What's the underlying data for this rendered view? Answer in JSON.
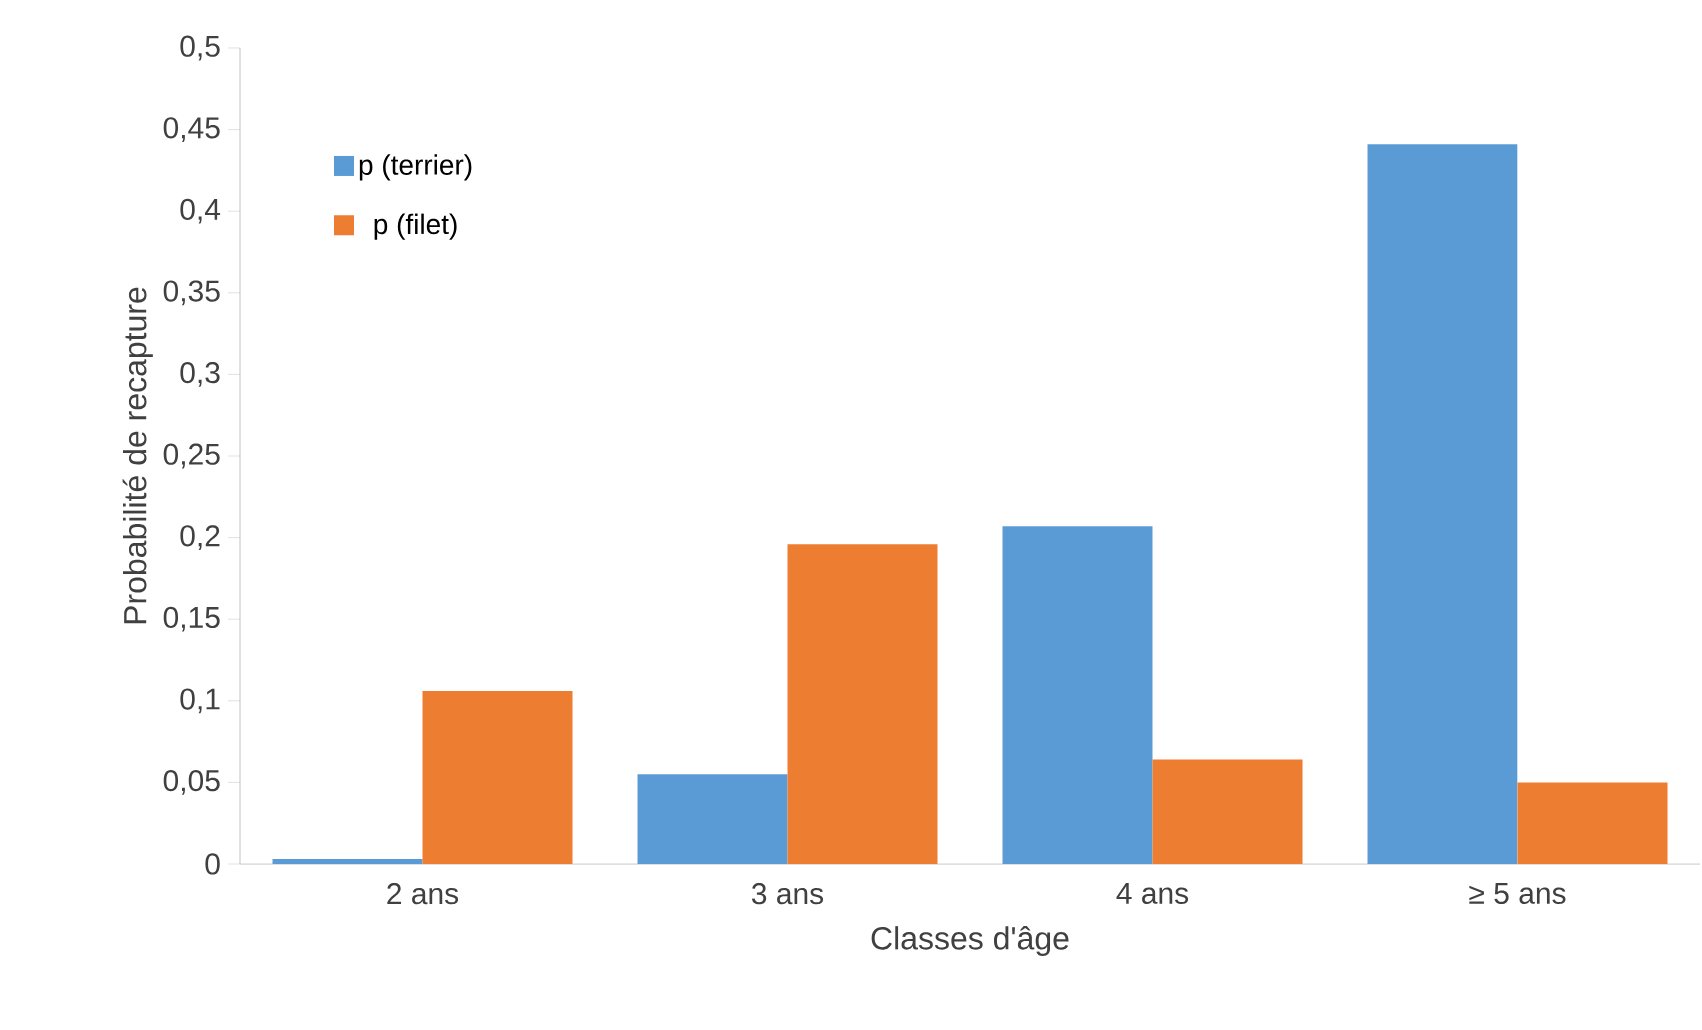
{
  "chart_data": {
    "type": "bar",
    "xlabel": "Classes d'âge",
    "ylabel": "Probabilité de recapture",
    "categories": [
      "2 ans",
      "3 ans",
      "4 ans",
      "≥ 5 ans"
    ],
    "series": [
      {
        "name": "p (terrier)",
        "color": "#5b9bd5",
        "values": [
          0.003,
          0.055,
          0.207,
          0.441
        ]
      },
      {
        "name": "p (filet)",
        "color": "#ed7d31",
        "values": [
          0.106,
          0.196,
          0.064,
          0.05
        ]
      }
    ],
    "ylim": [
      0,
      0.5
    ],
    "yticks": [
      0,
      {
        "value": 0.05,
        "label": "0,05"
      },
      {
        "value": 0.1,
        "label": "0,1"
      },
      {
        "value": 0.15,
        "label": "0,15"
      },
      {
        "value": 0.2,
        "label": "0,2"
      },
      {
        "value": 0.25,
        "label": "0,25"
      },
      {
        "value": 0.3,
        "label": "0,3"
      },
      {
        "value": 0.35,
        "label": "0,35"
      },
      {
        "value": 0.4,
        "label": "0,4"
      },
      {
        "value": 0.45,
        "label": "0,45"
      },
      {
        "value": 0.5,
        "label": "0,5"
      }
    ],
    "grid": false,
    "legend": "top left"
  }
}
